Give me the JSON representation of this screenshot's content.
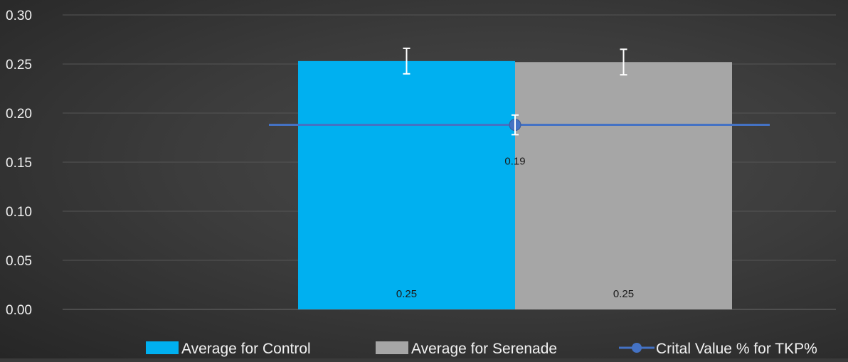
{
  "chart_data": {
    "type": "bar",
    "categories": [
      ""
    ],
    "ylim": [
      0,
      0.3
    ],
    "yticks": [
      "0.00",
      "0.05",
      "0.10",
      "0.15",
      "0.20",
      "0.25",
      "0.30"
    ],
    "grid": true,
    "legend_position": "bottom",
    "series": [
      {
        "name": "Average for Control",
        "kind": "bar",
        "color": "#00b0f0",
        "value": 0.253,
        "label": "0.25",
        "error": 0.013
      },
      {
        "name": "Average for Serenade",
        "kind": "bar",
        "color": "#a6a6a6",
        "value": 0.252,
        "label": "0.25",
        "error": 0.013
      },
      {
        "name": "Crital Value % for TKP%",
        "kind": "line",
        "color": "#4472c4",
        "value": 0.188,
        "label": "0.19",
        "error": 0.01
      }
    ]
  }
}
